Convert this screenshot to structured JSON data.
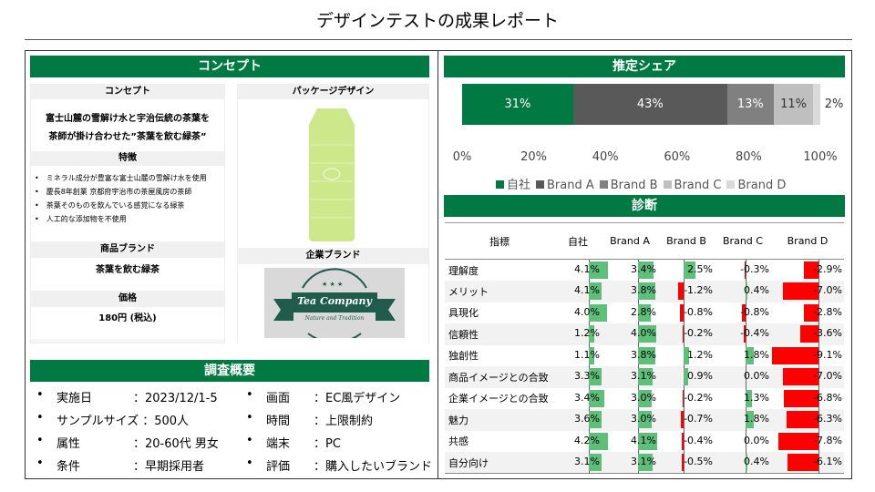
{
  "title": "デザインテストの成果レポート",
  "concept": {
    "header": "コンセプト",
    "concept_label": "コンセプト",
    "concept_text_1": "富士山麓の雪解け水と宇治伝統の茶葉を",
    "concept_text_2": "茶師が掛け合わせた”茶葉を飲む緑茶”",
    "features_label": "特徴",
    "features": [
      "ミネラル成分が豊富な富士山麓の雪解け水を使用",
      "慶長8年創業 京都府宇治市の茶屋風房の茶師",
      "茶葉そのものを飲んでいる感覚になる緑茶",
      "人工的な添加物を不使用"
    ],
    "product_brand_label": "商品ブランド",
    "product_brand": "茶葉を飲む緑茶",
    "price_label": "価格",
    "price": "180円 (税込)",
    "package_label": "パッケージデザイン",
    "corporate_label": "企業ブランド",
    "logo_text": "Tea Company",
    "logo_sub": "Nature and Tradition"
  },
  "survey": {
    "header": "調査概要",
    "left": [
      {
        "k": "実施日",
        "v": "：2023/12/1-5"
      },
      {
        "k": "サンプルサイズ",
        "v": "：500人"
      },
      {
        "k": "属性",
        "v": "：20-60代 男女"
      },
      {
        "k": "条件",
        "v": "：早期採用者"
      }
    ],
    "right": [
      {
        "k": "画面",
        "v": "：EC風デザイン"
      },
      {
        "k": "時間",
        "v": "：上限制約"
      },
      {
        "k": "端末",
        "v": "：PC"
      },
      {
        "k": "評価",
        "v": "：購入したいブランド"
      }
    ]
  },
  "share": {
    "header": "推定シェア",
    "chart_data": {
      "type": "bar",
      "stacked": true,
      "orientation": "horizontal",
      "series": [
        {
          "name": "自社",
          "value": 31,
          "label": "31%",
          "color": "#007a42"
        },
        {
          "name": "Brand A",
          "value": 43,
          "label": "43%",
          "color": "#595959"
        },
        {
          "name": "Brand B",
          "value": 13,
          "label": "13%",
          "color": "#808080"
        },
        {
          "name": "Brand C",
          "value": 11,
          "label": "11%",
          "color": "#bfbfbf"
        },
        {
          "name": "Brand D",
          "value": 2,
          "label": "2%",
          "color": "#d9d9d9"
        }
      ],
      "xlim": [
        0,
        100
      ],
      "ticks": [
        "0%",
        "20%",
        "40%",
        "60%",
        "80%",
        "100%"
      ],
      "legend": "bottom"
    }
  },
  "diag": {
    "header": "診断",
    "columns": [
      "指標",
      "自社",
      "Brand A",
      "Brand B",
      "Brand C",
      "Brand D"
    ],
    "positive_color": "#5dbf7a",
    "negative_color": "#ff0000",
    "rows": [
      {
        "label": "理解度",
        "values": [
          4.1,
          3.4,
          2.5,
          -0.3,
          -2.9
        ]
      },
      {
        "label": "メリット",
        "values": [
          4.1,
          3.8,
          -1.2,
          0.4,
          -7.0
        ]
      },
      {
        "label": "具現化",
        "values": [
          4.0,
          2.8,
          -0.8,
          -0.8,
          -2.8
        ]
      },
      {
        "label": "信頼性",
        "values": [
          1.2,
          4.0,
          -0.2,
          -0.4,
          -3.6
        ]
      },
      {
        "label": "独創性",
        "values": [
          1.1,
          3.8,
          1.2,
          1.8,
          -9.1
        ]
      },
      {
        "label": "商品イメージとの合致",
        "values": [
          3.3,
          3.1,
          0.9,
          0.0,
          -7.0
        ]
      },
      {
        "label": "企業イメージとの合致",
        "values": [
          3.4,
          3.0,
          -0.2,
          1.3,
          -6.8
        ]
      },
      {
        "label": "魅力",
        "values": [
          3.6,
          3.0,
          -0.7,
          1.8,
          -6.3
        ]
      },
      {
        "label": "共感",
        "values": [
          4.2,
          4.1,
          -0.4,
          0.0,
          -7.8
        ]
      },
      {
        "label": "自分向け",
        "values": [
          3.1,
          3.1,
          -0.5,
          0.4,
          -6.1
        ]
      }
    ]
  }
}
